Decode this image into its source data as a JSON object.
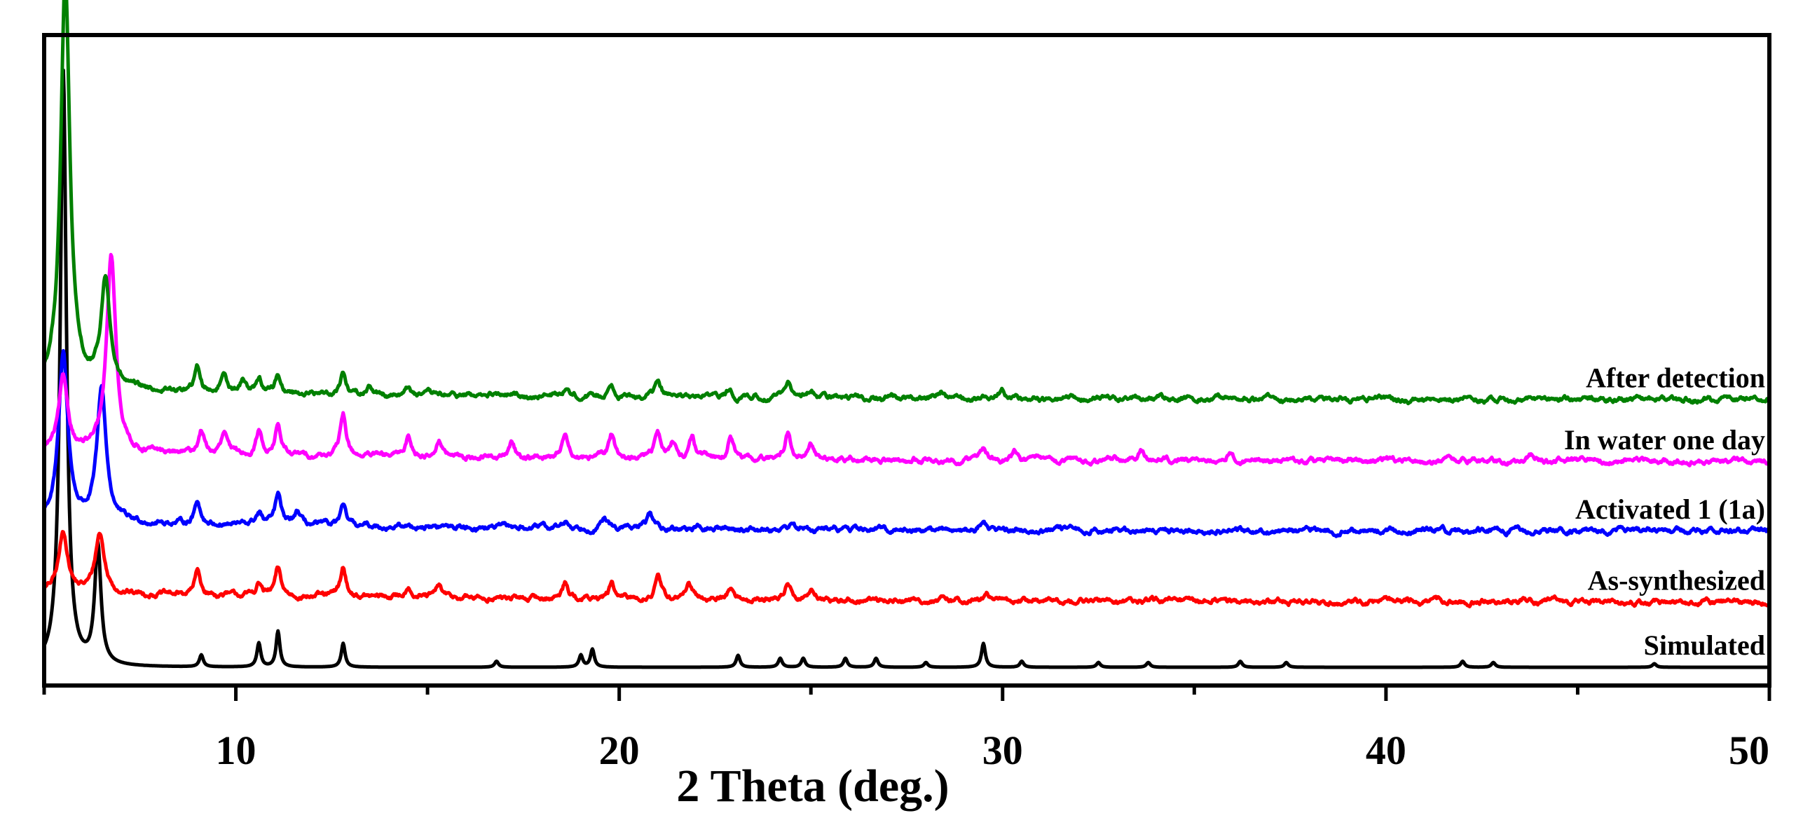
{
  "chart_data": {
    "type": "line",
    "title": "",
    "xlabel": "2 Theta (deg.)",
    "ylabel": "",
    "xlim": [
      5,
      50
    ],
    "xticks": [
      10,
      20,
      30,
      40,
      50
    ],
    "xtick_labels": [
      "10",
      "20",
      "30",
      "40",
      "50"
    ],
    "y_axis_shown": false,
    "grid": false,
    "legend": "inline labels at right end of each trace",
    "series": [
      {
        "name": "Simulated",
        "color": "#000000",
        "baseline": 0.0,
        "peaks": [
          [
            5.5,
            100
          ],
          [
            6.4,
            20
          ],
          [
            9.1,
            2
          ],
          [
            10.6,
            4
          ],
          [
            11.1,
            6
          ],
          [
            12.8,
            4
          ],
          [
            16.8,
            1
          ],
          [
            19.0,
            2
          ],
          [
            19.3,
            3
          ],
          [
            23.1,
            2
          ],
          [
            24.2,
            1.5
          ],
          [
            24.8,
            1.5
          ],
          [
            25.9,
            1.5
          ],
          [
            26.7,
            1.5
          ],
          [
            28.0,
            0.8
          ],
          [
            29.5,
            4
          ],
          [
            30.5,
            1
          ],
          [
            32.5,
            0.8
          ],
          [
            33.8,
            0.8
          ],
          [
            36.2,
            1
          ],
          [
            37.4,
            0.8
          ],
          [
            42.0,
            1
          ],
          [
            42.8,
            0.8
          ],
          [
            47.0,
            0.6
          ]
        ]
      },
      {
        "name": "As-synthesized",
        "color": "#ff0000",
        "baseline": 10.9,
        "peaks": [
          [
            5.5,
            10
          ],
          [
            6.45,
            10
          ],
          [
            9.0,
            4
          ],
          [
            10.6,
            2
          ],
          [
            11.1,
            4.5
          ],
          [
            12.8,
            4.8
          ],
          [
            14.5,
            2
          ],
          [
            15.3,
            2
          ],
          [
            18.6,
            3
          ],
          [
            19.8,
            2.5
          ],
          [
            21.0,
            4
          ],
          [
            21.8,
            2.5
          ],
          [
            22.9,
            2
          ],
          [
            24.4,
            3
          ],
          [
            25.0,
            1.5
          ],
          [
            29.6,
            1
          ],
          [
            35.5,
            0.8
          ]
        ]
      },
      {
        "name": "Activated 1 (1a)",
        "color": "#0000ff",
        "baseline": 22.8,
        "peaks": [
          [
            5.5,
            28
          ],
          [
            6.5,
            22
          ],
          [
            9.0,
            4
          ],
          [
            10.6,
            2
          ],
          [
            11.1,
            5
          ],
          [
            11.6,
            2.2
          ],
          [
            12.8,
            3
          ],
          [
            18.6,
            1
          ],
          [
            19.6,
            1.5
          ],
          [
            20.8,
            2.5
          ],
          [
            24.5,
            1
          ],
          [
            29.5,
            1.5
          ]
        ]
      },
      {
        "name": "In water one day",
        "color": "#ff00ff",
        "baseline": 34.5,
        "peaks": [
          [
            5.5,
            12
          ],
          [
            6.75,
            33
          ],
          [
            9.1,
            4
          ],
          [
            9.7,
            3.5
          ],
          [
            10.6,
            4
          ],
          [
            11.1,
            5
          ],
          [
            12.8,
            7
          ],
          [
            14.5,
            3.5
          ],
          [
            15.3,
            3
          ],
          [
            17.2,
            2.5
          ],
          [
            18.6,
            4.5
          ],
          [
            19.8,
            4
          ],
          [
            21.0,
            4.5
          ],
          [
            21.4,
            3
          ],
          [
            21.9,
            3.5
          ],
          [
            22.9,
            3.5
          ],
          [
            24.4,
            4.5
          ],
          [
            25.0,
            2.5
          ],
          [
            29.5,
            2
          ],
          [
            30.3,
            1.5
          ],
          [
            33.6,
            2
          ],
          [
            35.9,
            1.5
          ],
          [
            43.8,
            1
          ]
        ]
      },
      {
        "name": "After detection",
        "color": "#008000",
        "baseline": 44.9,
        "peaks": [
          [
            5.55,
            69
          ],
          [
            6.6,
            18
          ],
          [
            9.0,
            4
          ],
          [
            9.7,
            3.5
          ],
          [
            10.2,
            2
          ],
          [
            10.6,
            2.5
          ],
          [
            11.1,
            3
          ],
          [
            12.8,
            3.5
          ],
          [
            13.5,
            1.5
          ],
          [
            14.5,
            1.2
          ],
          [
            18.6,
            1.5
          ],
          [
            19.8,
            2
          ],
          [
            21.0,
            2.5
          ],
          [
            22.9,
            1.5
          ],
          [
            24.4,
            2
          ],
          [
            25.0,
            1.5
          ],
          [
            28.4,
            1
          ],
          [
            30.0,
            1
          ]
        ]
      }
    ]
  }
}
